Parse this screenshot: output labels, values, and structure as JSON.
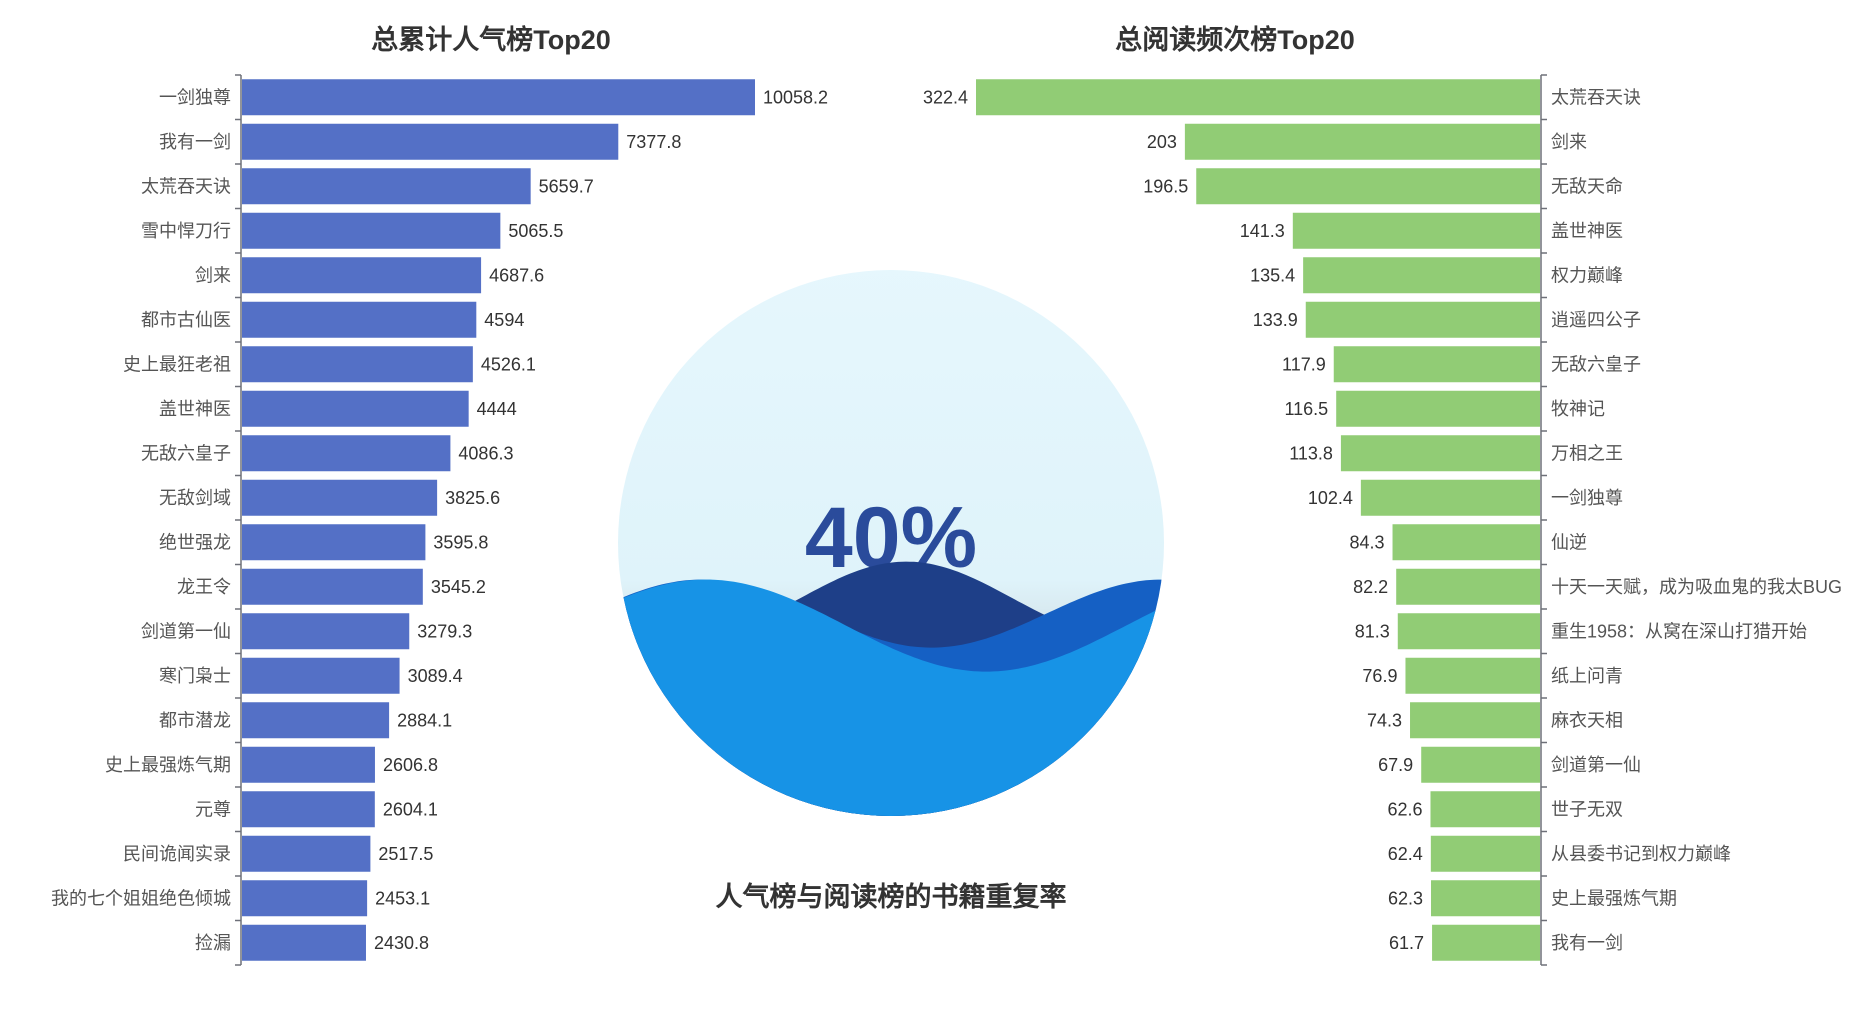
{
  "chart_data": [
    {
      "type": "bar",
      "orientation": "horizontal",
      "title": "总累计人气榜Top20",
      "color": "#5470c6",
      "categories": [
        "一剑独尊",
        "我有一剑",
        "太荒吞天诀",
        "雪中悍刀行",
        "剑来",
        "都市古仙医",
        "史上最狂老祖",
        "盖世神医",
        "无敌六皇子",
        "无敌剑域",
        "绝世强龙",
        "龙王令",
        "剑道第一仙",
        "寒门枭士",
        "都市潜龙",
        "史上最强炼气期",
        "元尊",
        "民间诡闻实录",
        "我的七个姐姐绝色倾城",
        "捡漏"
      ],
      "values": [
        10058.2,
        7377.8,
        5659.7,
        5065.5,
        4687.6,
        4594,
        4526.1,
        4444,
        4086.3,
        3825.6,
        3595.8,
        3545.2,
        3279.3,
        3089.4,
        2884.1,
        2606.8,
        2604.1,
        2517.5,
        2453.1,
        2430.8
      ],
      "value_labels": [
        "10058.2",
        "7377.8",
        "5659.7",
        "5065.5",
        "4687.6",
        "4594",
        "4526.1",
        "4444",
        "4086.3",
        "3825.6",
        "3595.8",
        "3545.2",
        "3279.3",
        "3089.4",
        "2884.1",
        "2606.8",
        "2604.1",
        "2517.5",
        "2453.1",
        "2430.8"
      ],
      "xlim": [
        0,
        10058.2
      ],
      "axis_side": "left"
    },
    {
      "type": "bar",
      "orientation": "horizontal",
      "title": "总阅读频次榜Top20",
      "color": "#91cc75",
      "categories": [
        "太荒吞天诀",
        "剑来",
        "无敌天命",
        "盖世神医",
        "权力巅峰",
        "逍遥四公子",
        "无敌六皇子",
        "牧神记",
        "万相之王",
        "一剑独尊",
        "仙逆",
        "十天一天赋，成为吸血鬼的我太BUG",
        "重生1958：从窝在深山打猎开始",
        "纸上问青",
        "麻衣天相",
        "剑道第一仙",
        "世子无双",
        "从县委书记到权力巅峰",
        "史上最强炼气期",
        "我有一剑"
      ],
      "values": [
        322.4,
        203,
        196.5,
        141.3,
        135.4,
        133.9,
        117.9,
        116.5,
        113.8,
        102.4,
        84.3,
        82.2,
        81.3,
        76.9,
        74.3,
        67.9,
        62.6,
        62.4,
        62.3,
        61.7
      ],
      "value_labels": [
        "322.4",
        "203",
        "196.5",
        "141.3",
        "135.4",
        "133.9",
        "117.9",
        "116.5",
        "113.8",
        "102.4",
        "84.3",
        "82.2",
        "81.3",
        "76.9",
        "74.3",
        "67.9",
        "62.6",
        "62.4",
        "62.3",
        "61.7"
      ],
      "xlim": [
        0,
        322.4
      ],
      "axis_side": "right"
    },
    {
      "type": "liquidfill",
      "title": "人气榜与阅读榜的书籍重复率",
      "value": 0.4,
      "label": "40%",
      "colors": {
        "background_top": "#e6f7fd",
        "background_mid": "#d6eef6",
        "background_dark": "#7a7f85",
        "wave_back": "#1e3f88",
        "wave_mid": "#1560c4",
        "wave_front": "#1793e6",
        "text": "#2a4b9b"
      }
    }
  ]
}
